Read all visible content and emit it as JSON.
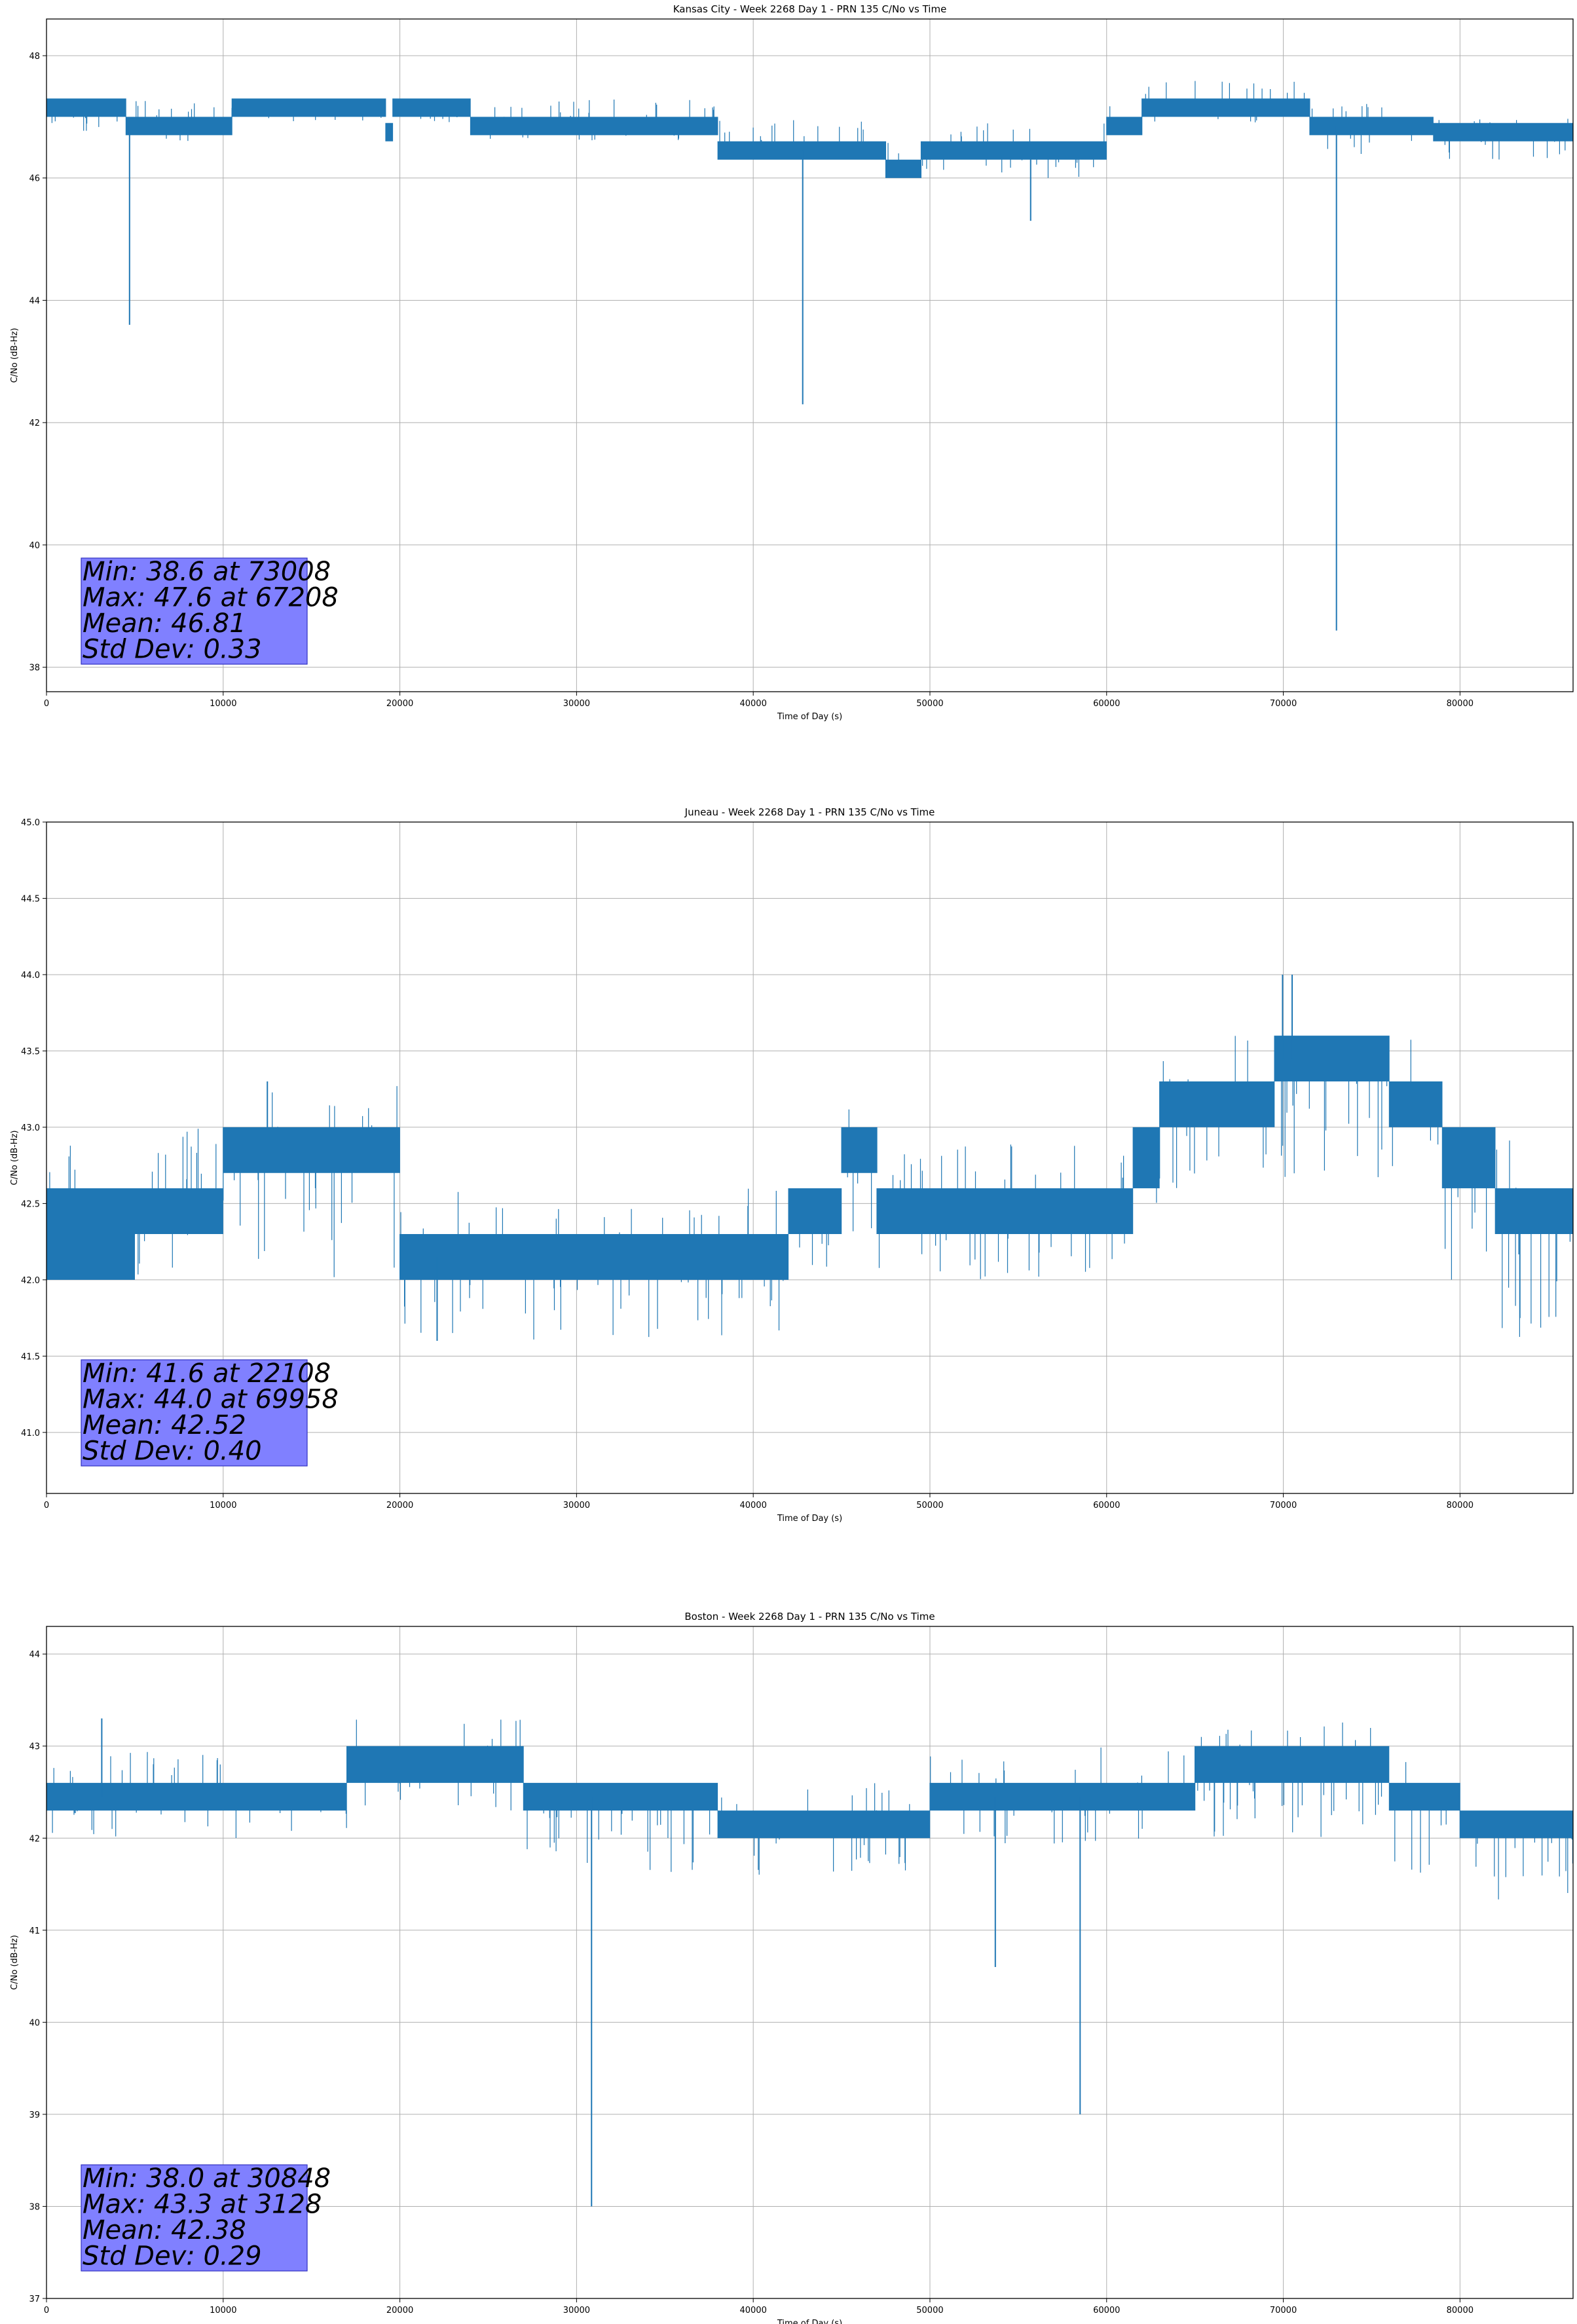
{
  "colors": {
    "line": "#1f77b4",
    "grid": "#b0b0b0",
    "axis": "#000000",
    "stats_box_fill": "#8080ff",
    "stats_box_edge": "#3030c0"
  },
  "chart_data": [
    {
      "type": "line",
      "title": "Kansas City - Week 2268 Day 1 - PRN 135 C/No vs Time",
      "xlabel": "Time of Day (s)",
      "ylabel": "C/No (dB-Hz)",
      "xlim": [
        0,
        86400
      ],
      "ylim": [
        37.6,
        48.6
      ],
      "xticks": [
        0,
        10000,
        20000,
        30000,
        40000,
        50000,
        60000,
        70000,
        80000
      ],
      "yticks": [
        38,
        40,
        42,
        44,
        46,
        48
      ],
      "ytick_labels": [
        "38",
        "40",
        "42",
        "44",
        "46",
        "48"
      ],
      "grid": true,
      "stats": [
        "Min: 38.6 at 73008",
        "Max: 47.6 at 67208",
        "Mean: 46.81",
        "Std Dev: 0.33"
      ],
      "series": [
        {
          "name": "C/No",
          "bands": [
            {
              "x": [
                0,
                4500
              ],
              "y": [
                47.0,
                47.3
              ],
              "noise": [
                46.6,
                47.3
              ]
            },
            {
              "x": [
                4500,
                10500
              ],
              "y": [
                46.7,
                47.0
              ],
              "noise": [
                46.6,
                47.3
              ]
            },
            {
              "x": [
                10500,
                19200
              ],
              "y": [
                47.0,
                47.3
              ],
              "noise": [
                46.9,
                47.3
              ]
            },
            {
              "x": [
                19200,
                19600
              ],
              "y": [
                46.6,
                46.9
              ],
              "noise": [
                46.6,
                47.0
              ]
            },
            {
              "x": [
                19600,
                24000
              ],
              "y": [
                47.0,
                47.3
              ],
              "noise": [
                46.9,
                47.3
              ]
            },
            {
              "x": [
                24000,
                38000
              ],
              "y": [
                46.7,
                47.0
              ],
              "noise": [
                46.6,
                47.3
              ]
            },
            {
              "x": [
                38000,
                47500
              ],
              "y": [
                46.3,
                46.6
              ],
              "noise": [
                46.3,
                47.0
              ]
            },
            {
              "x": [
                47500,
                49500
              ],
              "y": [
                46.0,
                46.3
              ],
              "noise": [
                46.0,
                46.6
              ]
            },
            {
              "x": [
                49500,
                60000
              ],
              "y": [
                46.3,
                46.6
              ],
              "noise": [
                46.0,
                46.9
              ]
            },
            {
              "x": [
                60000,
                62000
              ],
              "y": [
                46.7,
                47.0
              ],
              "noise": [
                46.6,
                47.3
              ]
            },
            {
              "x": [
                62000,
                71500
              ],
              "y": [
                47.0,
                47.3
              ],
              "noise": [
                46.9,
                47.6
              ]
            },
            {
              "x": [
                71500,
                78500
              ],
              "y": [
                46.7,
                47.0
              ],
              "noise": [
                46.3,
                47.3
              ]
            },
            {
              "x": [
                78500,
                86400
              ],
              "y": [
                46.6,
                46.9
              ],
              "noise": [
                46.3,
                47.0
              ]
            }
          ],
          "spikes": [
            [
              4700,
              43.6
            ],
            [
              42800,
              42.3
            ],
            [
              55700,
              45.3
            ],
            [
              73008,
              38.6
            ]
          ]
        }
      ]
    },
    {
      "type": "line",
      "title": "Juneau - Week 2268 Day 1 - PRN 135 C/No vs Time",
      "xlabel": "Time of Day (s)",
      "ylabel": "C/No (dB-Hz)",
      "xlim": [
        0,
        86400
      ],
      "ylim": [
        40.6,
        45.0
      ],
      "xticks": [
        0,
        10000,
        20000,
        30000,
        40000,
        50000,
        60000,
        70000,
        80000
      ],
      "yticks": [
        41.0,
        41.5,
        42.0,
        42.5,
        43.0,
        43.5,
        44.0,
        44.5,
        45.0
      ],
      "ytick_labels": [
        "41.0",
        "41.5",
        "42.0",
        "42.5",
        "43.0",
        "43.5",
        "44.0",
        "44.5",
        "45.0"
      ],
      "grid": true,
      "stats": [
        "Min: 41.6 at 22108",
        "Max: 44.0 at 69958",
        "Mean: 42.52",
        "Std Dev: 0.40"
      ],
      "series": [
        {
          "name": "C/No",
          "bands": [
            {
              "x": [
                0,
                5000
              ],
              "y": [
                42.0,
                42.6
              ],
              "noise": [
                42.0,
                43.0
              ]
            },
            {
              "x": [
                5000,
                10000
              ],
              "y": [
                42.3,
                42.6
              ],
              "noise": [
                42.0,
                43.0
              ]
            },
            {
              "x": [
                10000,
                20000
              ],
              "y": [
                42.7,
                43.0
              ],
              "noise": [
                42.0,
                43.3
              ]
            },
            {
              "x": [
                20000,
                42000
              ],
              "y": [
                42.0,
                42.3
              ],
              "noise": [
                41.6,
                42.6
              ]
            },
            {
              "x": [
                42000,
                45000
              ],
              "y": [
                42.3,
                42.6
              ],
              "noise": [
                42.0,
                42.6
              ]
            },
            {
              "x": [
                45000,
                47000
              ],
              "y": [
                42.7,
                43.0
              ],
              "noise": [
                42.3,
                43.3
              ]
            },
            {
              "x": [
                47000,
                61500
              ],
              "y": [
                42.3,
                42.6
              ],
              "noise": [
                42.0,
                42.9
              ]
            },
            {
              "x": [
                61500,
                63000
              ],
              "y": [
                42.6,
                43.0
              ],
              "noise": [
                42.3,
                43.3
              ]
            },
            {
              "x": [
                63000,
                69500
              ],
              "y": [
                43.0,
                43.3
              ],
              "noise": [
                42.6,
                43.6
              ]
            },
            {
              "x": [
                69500,
                76000
              ],
              "y": [
                43.3,
                43.6
              ],
              "noise": [
                42.6,
                43.6
              ]
            },
            {
              "x": [
                76000,
                79000
              ],
              "y": [
                43.0,
                43.3
              ],
              "noise": [
                42.6,
                43.6
              ]
            },
            {
              "x": [
                79000,
                82000
              ],
              "y": [
                42.6,
                43.0
              ],
              "noise": [
                42.0,
                43.0
              ]
            },
            {
              "x": [
                82000,
                86400
              ],
              "y": [
                42.3,
                42.6
              ],
              "noise": [
                41.6,
                43.0
              ]
            }
          ],
          "spikes": [
            [
              22108,
              41.6
            ],
            [
              69958,
              44.0
            ],
            [
              70500,
              44.0
            ],
            [
              12500,
              43.3
            ]
          ]
        }
      ]
    },
    {
      "type": "line",
      "title": "Boston - Week 2268 Day 1 - PRN 135 C/No vs Time",
      "xlabel": "Time of Day (s)",
      "ylabel": "C/No (dB-Hz)",
      "xlim": [
        0,
        86400
      ],
      "ylim": [
        37.0,
        44.3
      ],
      "xticks": [
        0,
        10000,
        20000,
        30000,
        40000,
        50000,
        60000,
        70000,
        80000
      ],
      "yticks": [
        37,
        38,
        39,
        40,
        41,
        42,
        43,
        44
      ],
      "ytick_labels": [
        "37",
        "38",
        "39",
        "40",
        "41",
        "42",
        "43",
        "44"
      ],
      "grid": true,
      "stats": [
        "Min: 38.0 at 30848",
        "Max: 43.3 at 3128",
        "Mean: 42.38",
        "Std Dev: 0.29"
      ],
      "series": [
        {
          "name": "C/No",
          "bands": [
            {
              "x": [
                0,
                10000
              ],
              "y": [
                42.3,
                42.6
              ],
              "noise": [
                42.0,
                43.0
              ]
            },
            {
              "x": [
                10000,
                17000
              ],
              "y": [
                42.3,
                42.6
              ],
              "noise": [
                42.0,
                42.6
              ]
            },
            {
              "x": [
                17000,
                27000
              ],
              "y": [
                42.6,
                43.0
              ],
              "noise": [
                42.3,
                43.3
              ]
            },
            {
              "x": [
                27000,
                38000
              ],
              "y": [
                42.3,
                42.6
              ],
              "noise": [
                41.6,
                42.6
              ]
            },
            {
              "x": [
                38000,
                50000
              ],
              "y": [
                42.0,
                42.3
              ],
              "noise": [
                41.6,
                42.6
              ]
            },
            {
              "x": [
                50000,
                65000
              ],
              "y": [
                42.3,
                42.6
              ],
              "noise": [
                41.9,
                43.0
              ]
            },
            {
              "x": [
                65000,
                76000
              ],
              "y": [
                42.6,
                43.0
              ],
              "noise": [
                42.0,
                43.3
              ]
            },
            {
              "x": [
                76000,
                80000
              ],
              "y": [
                42.3,
                42.6
              ],
              "noise": [
                41.6,
                43.0
              ]
            },
            {
              "x": [
                80000,
                86400
              ],
              "y": [
                42.0,
                42.3
              ],
              "noise": [
                41.3,
                42.3
              ]
            }
          ],
          "spikes": [
            [
              30848,
              38.0
            ],
            [
              53700,
              40.6
            ],
            [
              58500,
              39.0
            ],
            [
              3128,
              43.3
            ]
          ]
        }
      ]
    }
  ]
}
